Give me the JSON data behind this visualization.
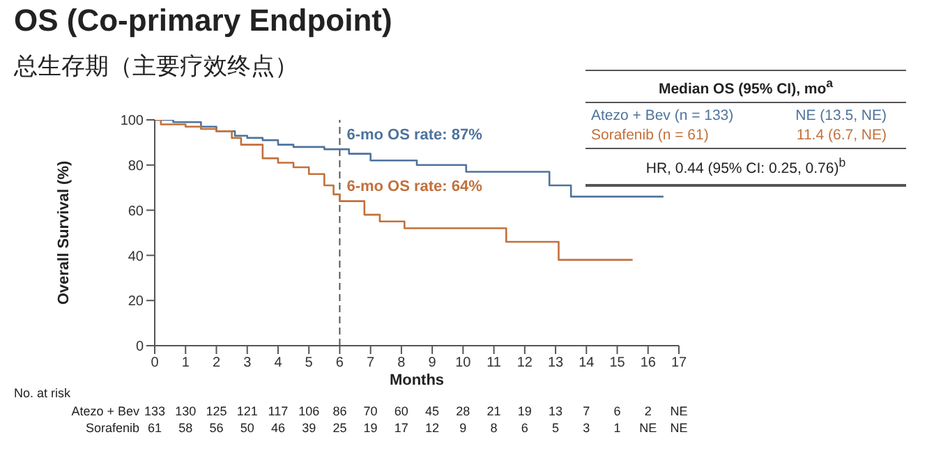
{
  "chart_data": {
    "type": "step",
    "title": "OS (Co-primary Endpoint)",
    "subtitle": "总生存期（主要疗效终点）",
    "xlabel": "Months",
    "ylabel": "Overall Survival (%)",
    "xlim": [
      0,
      17
    ],
    "xticks": [
      0,
      1,
      2,
      3,
      4,
      5,
      6,
      7,
      8,
      9,
      10,
      11,
      12,
      13,
      14,
      15,
      16,
      17
    ],
    "ylim": [
      0,
      100
    ],
    "yticks": [
      0,
      20,
      40,
      60,
      80,
      100
    ],
    "grid": false,
    "legend": "top right",
    "marker": "none",
    "line_style": "solid",
    "series": [
      {
        "name": "Atezo + Bev (n = 133)",
        "color": "#4e739c",
        "x": [
          0,
          0.6,
          1.5,
          2,
          2.6,
          3,
          3.5,
          4,
          4.5,
          5.5,
          6.3,
          7,
          8.5,
          10.1,
          12.8,
          13.5,
          16.5
        ],
        "values": [
          100,
          99,
          97,
          95,
          93,
          92,
          91,
          89,
          88,
          87,
          85,
          82,
          80,
          77,
          71,
          66,
          66
        ]
      },
      {
        "name": "Sorafenib (n = 61)",
        "color": "#c2703c",
        "x": [
          0,
          0.2,
          1,
          1.5,
          2,
          2.5,
          2.8,
          3.5,
          4,
          4.5,
          5,
          5.5,
          5.8,
          6,
          6.8,
          7.3,
          8.1,
          11.4,
          13.1,
          15.5
        ],
        "values": [
          100,
          98,
          97,
          96,
          95,
          92,
          89,
          83,
          81,
          79,
          76,
          71,
          67,
          64,
          58,
          55,
          52,
          46,
          38,
          38
        ]
      }
    ],
    "ref_lines": [
      {
        "axis": "x",
        "value": 6,
        "line_style": "dashed",
        "color": "#555555"
      }
    ],
    "annotations": [
      {
        "text": "6-mo OS rate: 87%",
        "x": 6,
        "y": 87
      },
      {
        "text": "6-mo OS rate: 64%",
        "x": 6,
        "y": 64
      },
      "Median OS (95% CI), mo$^{a}$",
      "NE (13.5, NE)",
      "11.4 (6.7, NE)",
      "HR, 0.44 (95% CI: 0.25, 0.76)$^{b}$",
      "No. at risk",
      "Atezo + Bev",
      "133 130 125 121 117 106 86 70 60 45 28 21 19 13 7 6 2 NE",
      "Sorafenib",
      "61 58 56 50 46 39 25 19 17 12 9 8 6 5 3 1 NE NE"
    ]
  }
}
